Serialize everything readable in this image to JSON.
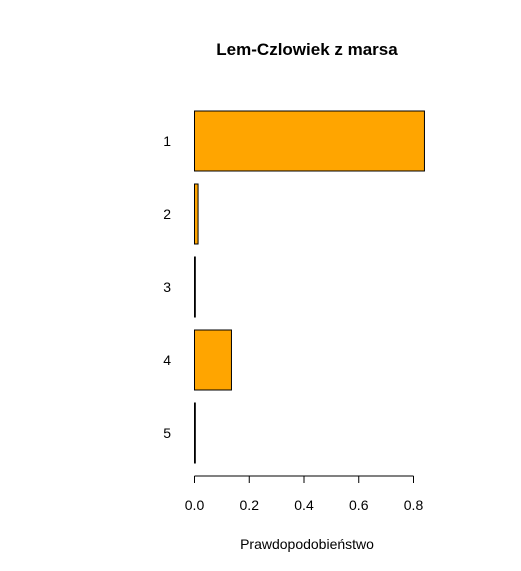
{
  "chart_data": {
    "type": "bar",
    "orientation": "horizontal",
    "title": "Lem-Czlowiek z marsa",
    "xlabel": "Prawdopodobieństwo",
    "ylabel": "",
    "categories": [
      "1",
      "2",
      "3",
      "4",
      "5"
    ],
    "values": [
      0.84,
      0.013,
      0.003,
      0.135,
      0.003
    ],
    "xlim": [
      0,
      0.8
    ],
    "x_ticks": [
      "0.0",
      "0.2",
      "0.4",
      "0.6",
      "0.8"
    ],
    "bar_color": "#FFA500",
    "grid": false,
    "legend": "none"
  }
}
